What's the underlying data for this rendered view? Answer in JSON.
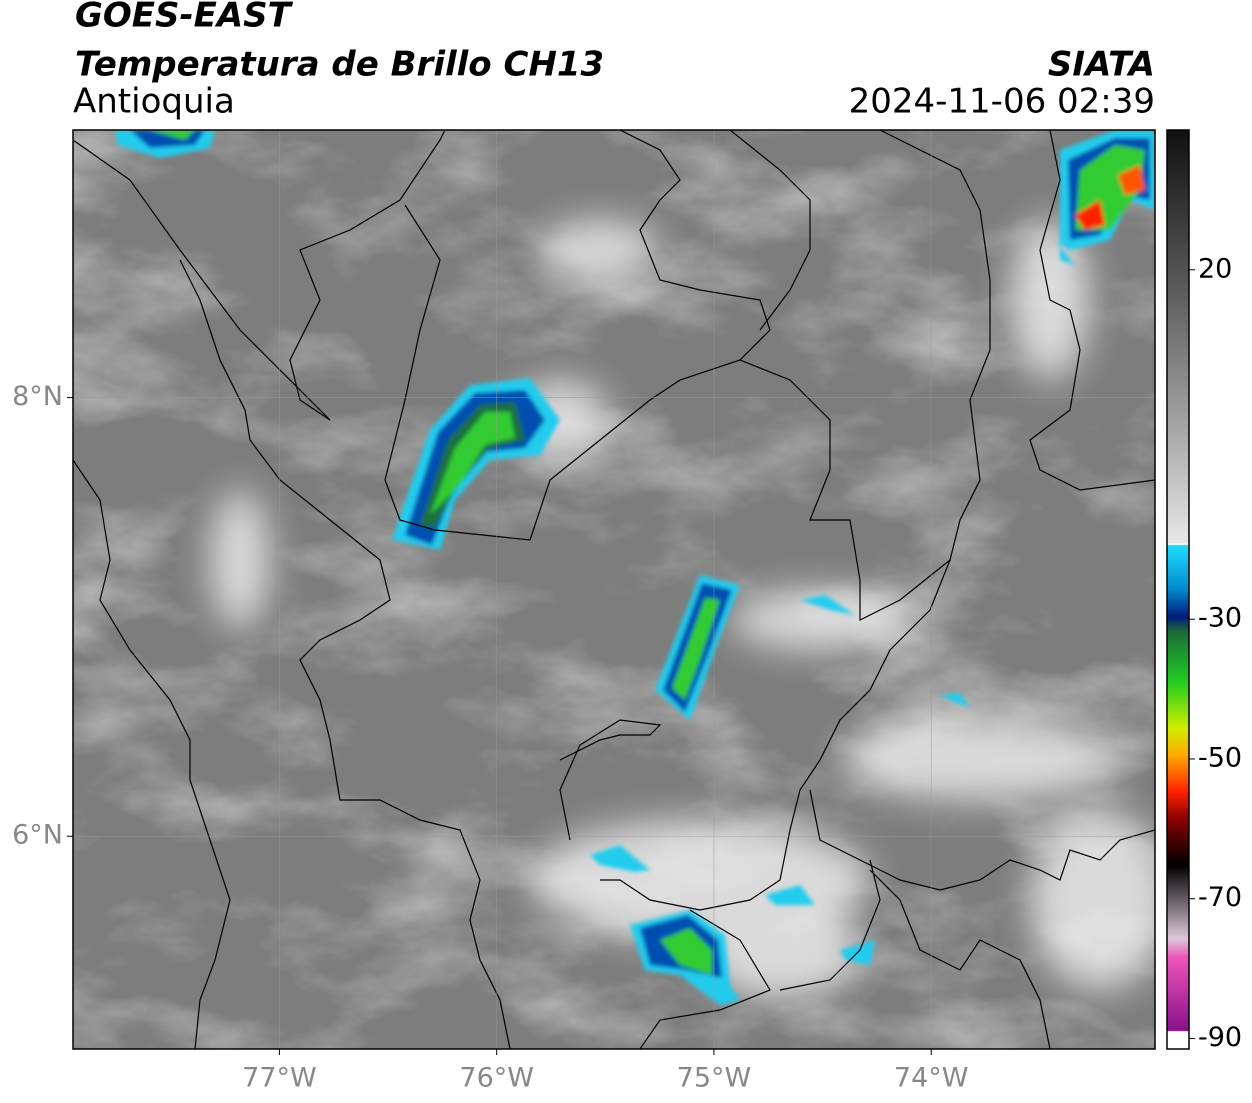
{
  "header": {
    "line1": "GOES-EAST",
    "line2": "Temperatura de Brillo CH13",
    "region": "Antioquia",
    "source": "SIATA",
    "datetime": "2024-11-06 02:39"
  },
  "map": {
    "xlim": [
      -77.95,
      -72.97
    ],
    "ylim": [
      5.03,
      9.22
    ],
    "xticks": [
      {
        "value": -77,
        "label": "77°W"
      },
      {
        "value": -76,
        "label": "76°W"
      },
      {
        "value": -75,
        "label": "75°W"
      },
      {
        "value": -74,
        "label": "74°W"
      }
    ],
    "yticks": [
      {
        "value": 8,
        "label": "8°N"
      },
      {
        "value": 6,
        "label": "6°N"
      }
    ]
  },
  "colorbar": {
    "lim": [
      -91.5,
      40
    ],
    "ticks": [
      20,
      -30,
      -50,
      -70,
      -90
    ]
  }
}
